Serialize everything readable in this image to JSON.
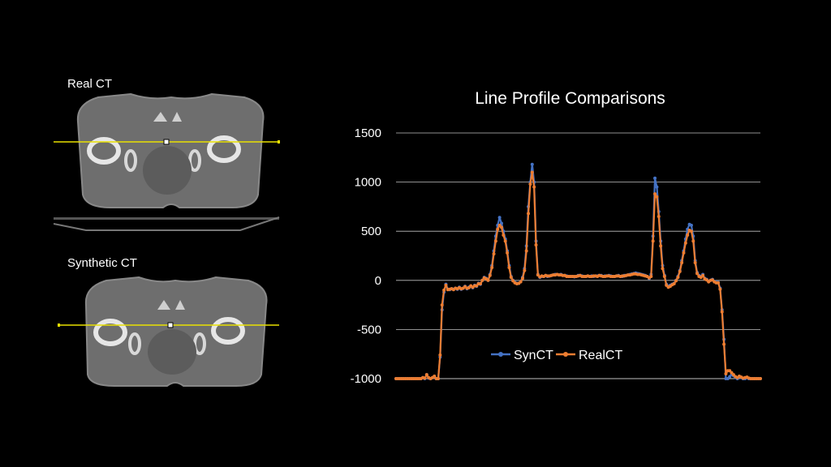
{
  "panels": {
    "real_label": "Real CT",
    "synthetic_label": "Synthetic CT"
  },
  "colors": {
    "background": "#000000",
    "profile_line": "#e8e000",
    "series_syn": "#4472c4",
    "series_real": "#ed7d31",
    "gridline": "#bfbfbf"
  },
  "chart_data": {
    "type": "line",
    "title": "Line Profile Comparisons",
    "xlabel": "",
    "ylabel": "",
    "ylim": [
      -1000,
      1500
    ],
    "yticks": [
      1500,
      1000,
      500,
      0,
      -500,
      -1000
    ],
    "grid": true,
    "legend_position": "center-bottom",
    "series": [
      {
        "name": "SynCT",
        "values": [
          -1000,
          -1000,
          -1000,
          -1000,
          -1000,
          -1000,
          -1000,
          -1000,
          -1000,
          -1000,
          -1000,
          -1000,
          -1000,
          -1000,
          -990,
          -1000,
          -960,
          -995,
          -1000,
          -990,
          -980,
          -1000,
          -1000,
          -780,
          -300,
          -120,
          -40,
          -90,
          -95,
          -85,
          -90,
          -80,
          -90,
          -70,
          -90,
          -80,
          -60,
          -85,
          -70,
          -60,
          -75,
          -50,
          -60,
          -30,
          -40,
          0,
          30,
          20,
          0,
          60,
          150,
          300,
          450,
          560,
          640,
          580,
          500,
          420,
          300,
          150,
          40,
          0,
          -20,
          -30,
          -30,
          -10,
          30,
          120,
          350,
          750,
          1000,
          1180,
          1000,
          400,
          60,
          30,
          40,
          40,
          50,
          40,
          45,
          50,
          55,
          60,
          60,
          55,
          60,
          50,
          50,
          45,
          40,
          40,
          40,
          35,
          40,
          50,
          50,
          45,
          40,
          40,
          45,
          40,
          45,
          40,
          45,
          45,
          50,
          50,
          40,
          45,
          45,
          50,
          45,
          40,
          40,
          45,
          50,
          40,
          40,
          50,
          50,
          55,
          60,
          65,
          70,
          75,
          70,
          65,
          60,
          55,
          50,
          40,
          20,
          60,
          450,
          1040,
          950,
          700,
          400,
          150,
          50,
          -40,
          -60,
          -50,
          -40,
          -30,
          0,
          40,
          100,
          200,
          300,
          420,
          520,
          570,
          560,
          450,
          200,
          80,
          50,
          40,
          60,
          20,
          10,
          -10,
          0,
          10,
          -10,
          -20,
          -20,
          -80,
          -300,
          -600,
          -1000,
          -1000,
          -980,
          -960,
          -970,
          -990,
          -1000,
          -980,
          -990,
          -1000,
          -1000,
          -990,
          -1000,
          -1000,
          -1000,
          -1000,
          -1000,
          -1000,
          -1000
        ]
      },
      {
        "name": "RealCT",
        "values": [
          -1000,
          -1000,
          -1000,
          -1000,
          -1000,
          -1000,
          -1000,
          -1000,
          -1000,
          -1000,
          -1000,
          -1000,
          -1000,
          -1000,
          -990,
          -995,
          -960,
          -990,
          -1000,
          -990,
          -975,
          -1000,
          -1000,
          -760,
          -250,
          -100,
          -50,
          -95,
          -90,
          -85,
          -95,
          -80,
          -85,
          -75,
          -85,
          -80,
          -65,
          -80,
          -75,
          -55,
          -70,
          -55,
          -55,
          -35,
          -35,
          0,
          25,
          15,
          0,
          50,
          130,
          270,
          400,
          520,
          560,
          540,
          460,
          400,
          280,
          130,
          30,
          -5,
          -25,
          -35,
          -30,
          -15,
          20,
          100,
          300,
          680,
          980,
          1100,
          950,
          360,
          55,
          35,
          45,
          40,
          50,
          45,
          45,
          50,
          55,
          55,
          60,
          55,
          55,
          50,
          50,
          40,
          40,
          40,
          40,
          40,
          40,
          45,
          50,
          40,
          40,
          40,
          45,
          40,
          40,
          45,
          45,
          40,
          50,
          45,
          40,
          40,
          45,
          45,
          40,
          40,
          40,
          45,
          45,
          40,
          45,
          45,
          50,
          55,
          55,
          60,
          65,
          65,
          60,
          60,
          55,
          50,
          45,
          40,
          25,
          40,
          400,
          880,
          850,
          650,
          350,
          120,
          40,
          -50,
          -70,
          -60,
          -45,
          -35,
          -5,
          30,
          90,
          180,
          280,
          380,
          460,
          510,
          500,
          400,
          180,
          70,
          40,
          30,
          50,
          15,
          5,
          -15,
          0,
          5,
          -15,
          -25,
          -25,
          -90,
          -320,
          -650,
          -950,
          -920,
          -920,
          -940,
          -960,
          -980,
          -990,
          -975,
          -985,
          -995,
          -990,
          -985,
          -995,
          -1000,
          -1000,
          -1000,
          -1000,
          -1000,
          -1000
        ]
      }
    ]
  }
}
